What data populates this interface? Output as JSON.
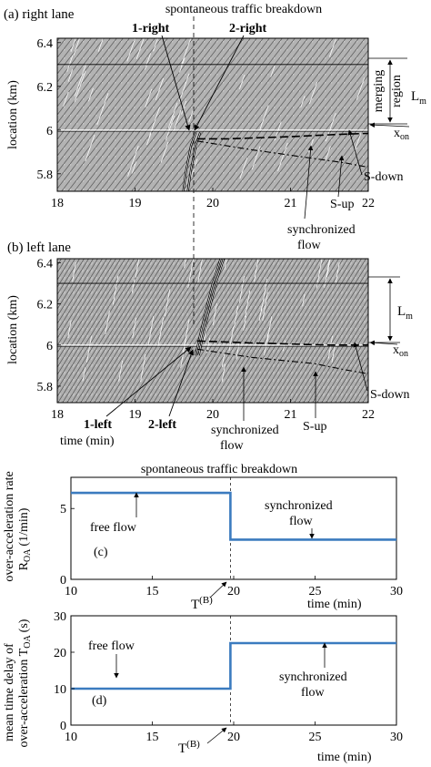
{
  "panels": {
    "a": {
      "label": "(a) right lane",
      "title": "spontaneous traffic breakdown",
      "ylabel": "location (km)",
      "yticks": [
        "6.4",
        "6.2",
        "6",
        "5.8"
      ],
      "xticks": [
        "18",
        "19",
        "20",
        "21",
        "22"
      ],
      "ann": {
        "one_right": "1-right",
        "two_right": "2-right",
        "merging1": "merging",
        "merging2": "region",
        "lm": "L",
        "lm_sub": "m",
        "xon": "x",
        "xon_sub": "on",
        "sdown": "S-down",
        "sup": "S-up",
        "sync1": "synchronized",
        "sync2": "flow"
      }
    },
    "b": {
      "label": "(b) left lane",
      "ylabel": "location (km)",
      "yticks": [
        "6.4",
        "6.2",
        "6",
        "5.8"
      ],
      "xticks": [
        "18",
        "19",
        "20",
        "21",
        "22"
      ],
      "xlabel": "time (min)",
      "ann": {
        "one_left": "1-left",
        "two_left": "2-left",
        "lm": "L",
        "lm_sub": "m",
        "xon": "x",
        "xon_sub": "on",
        "sdown": "S-down",
        "sup": "S-up",
        "sync1": "synchronized",
        "sync2": "flow"
      }
    },
    "c": {
      "label": "(c)",
      "title": "spontaneous traffic breakdown",
      "ylabel1": "over-acceleration rate",
      "ylabel2": "R",
      "ylabel2_sub": "OA",
      "ylabel2_unit": "(1/min)",
      "xlabel": "time (min)",
      "free": "free flow",
      "sync1": "synchronized",
      "sync2": "flow",
      "tb": "T",
      "tb_sup": "(B)",
      "yticks": [
        "0",
        "5"
      ],
      "xticks": [
        "10",
        "15",
        "20",
        "25",
        "30"
      ]
    },
    "d": {
      "label": "(d)",
      "ylabel1": "mean time delay of",
      "ylabel2": "over-acceleration T",
      "ylabel2_sub": "OA",
      "ylabel2_unit": "(s)",
      "xlabel": "time (min)",
      "free": "free flow",
      "sync1": "synchronized",
      "sync2": "flow",
      "tb": "T",
      "tb_sup": "(B)",
      "yticks": [
        "0",
        "10",
        "20",
        "30"
      ],
      "xticks": [
        "10",
        "15",
        "20",
        "25",
        "30"
      ]
    }
  },
  "colors": {
    "series": "#3b7bbf",
    "hatch_bg": "#a9a9a9",
    "ink": "#000000"
  },
  "chart_data": [
    {
      "type": "line",
      "panel": "a",
      "title": "spontaneous traffic breakdown",
      "xlabel": "",
      "ylabel": "location (km)",
      "xlim": [
        18,
        22
      ],
      "ylim": [
        5.72,
        6.42
      ],
      "series": [
        {
          "name": "1-right",
          "x": [
            19.62,
            19.66,
            19.72,
            19.78
          ],
          "y": [
            5.72,
            5.82,
            5.93,
            5.99
          ]
        },
        {
          "name": "2-right",
          "x": [
            19.68,
            19.72,
            19.78,
            19.84
          ],
          "y": [
            5.72,
            5.82,
            5.93,
            5.99
          ]
        },
        {
          "name": "S-down",
          "x": [
            19.8,
            20.2,
            21.0,
            21.6,
            22.0
          ],
          "y": [
            5.96,
            5.96,
            5.97,
            5.98,
            5.985
          ]
        },
        {
          "name": "S-up",
          "x": [
            19.8,
            20.5,
            21.3,
            21.7,
            22.0
          ],
          "y": [
            5.95,
            5.91,
            5.87,
            5.85,
            5.83
          ]
        }
      ],
      "reference_lines": {
        "merging_region_top": 6.3,
        "x_on": 6.0
      }
    },
    {
      "type": "line",
      "panel": "b",
      "title": "",
      "xlabel": "time (min)",
      "ylabel": "location (km)",
      "xlim": [
        18,
        22
      ],
      "ylim": [
        5.72,
        6.42
      ],
      "series": [
        {
          "name": "1-left",
          "x": [
            19.78,
            19.82,
            19.9,
            20.0,
            20.1
          ],
          "y": [
            5.95,
            6.02,
            6.15,
            6.3,
            6.42
          ]
        },
        {
          "name": "2-left",
          "x": [
            19.82,
            19.86,
            19.94,
            20.04,
            20.14
          ],
          "y": [
            5.95,
            6.02,
            6.15,
            6.3,
            6.42
          ]
        },
        {
          "name": "S-down",
          "x": [
            19.8,
            20.5,
            21.5,
            22.0
          ],
          "y": [
            6.02,
            6.01,
            6.0,
            6.0
          ]
        },
        {
          "name": "S-up",
          "x": [
            19.8,
            20.5,
            21.3,
            21.7,
            22.0
          ],
          "y": [
            5.98,
            5.94,
            5.91,
            5.88,
            5.86
          ]
        }
      ],
      "reference_lines": {
        "merging_region_top": 6.3,
        "x_on": 6.0
      }
    },
    {
      "type": "line",
      "panel": "c",
      "title": "spontaneous traffic breakdown",
      "xlabel": "time (min)",
      "ylabel": "over-acceleration rate R OA (1/min)",
      "xlim": [
        10,
        30
      ],
      "ylim": [
        0,
        7.2
      ],
      "series": [
        {
          "name": "",
          "x": [
            10,
            19.8,
            19.8,
            30
          ],
          "y": [
            6.1,
            6.1,
            2.8,
            2.8
          ]
        }
      ],
      "annotations": [
        "free flow",
        "synchronized flow",
        "T(B)"
      ]
    },
    {
      "type": "line",
      "panel": "d",
      "title": "",
      "xlabel": "time (min)",
      "ylabel": "mean time delay of over-acceleration T OA (s)",
      "xlim": [
        10,
        30
      ],
      "ylim": [
        0,
        30
      ],
      "series": [
        {
          "name": "",
          "x": [
            10,
            19.8,
            19.8,
            30
          ],
          "y": [
            10,
            10,
            22.5,
            22.5
          ]
        }
      ],
      "annotations": [
        "free flow",
        "synchronized flow",
        "T(B)"
      ]
    }
  ]
}
